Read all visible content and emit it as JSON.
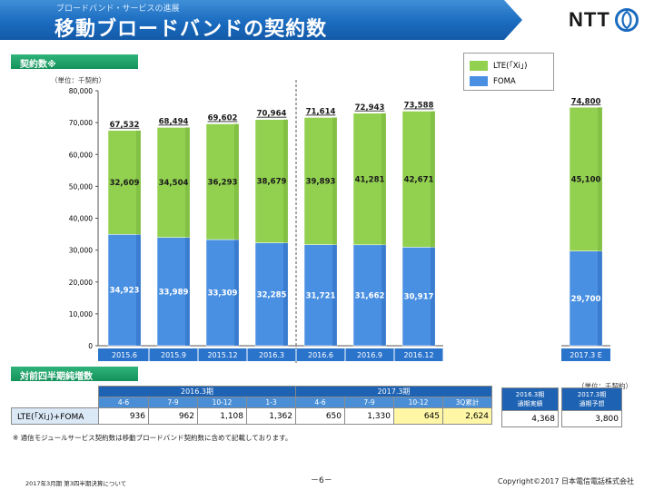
{
  "header": {
    "subtitle": "ブロードバンド・サービスの進展",
    "title": "移動ブロードバンドの契約数",
    "logo_text": "NTT"
  },
  "section1": {
    "label": "契約数※",
    "unit": "（単位：千契約）"
  },
  "section2": {
    "label": "対前四半期純増数",
    "unit": "（単位：千契約）"
  },
  "legend": {
    "lte": "LTE(「Xi」)",
    "foma": "FOMA"
  },
  "colors": {
    "lte": "#92d050",
    "foma": "#4a90e2",
    "foma_dark": "#2f6fc4",
    "axis_label_bg": "#2b74cc"
  },
  "chart_data": {
    "type": "bar",
    "stacked": true,
    "categories": [
      "2015.6",
      "2015.9",
      "2015.12",
      "2016.3",
      "2016.6",
      "2016.9",
      "2016.12",
      "2017.3 E"
    ],
    "series": [
      {
        "name": "FOMA",
        "values": [
          34923,
          33989,
          33309,
          32285,
          31721,
          31662,
          30917,
          29700
        ]
      },
      {
        "name": "LTE(「Xi」)",
        "values": [
          32609,
          34504,
          36293,
          38679,
          39893,
          41281,
          42671,
          45100
        ]
      }
    ],
    "totals": [
      67532,
      68494,
      69602,
      70964,
      71614,
      72943,
      73588,
      74800
    ],
    "ylim": [
      0,
      80000
    ],
    "yticks": [
      0,
      10000,
      20000,
      30000,
      40000,
      50000,
      60000,
      70000,
      80000
    ],
    "ytick_labels": [
      "0",
      "10,000",
      "20,000",
      "30,000",
      "40,000",
      "50,000",
      "60,000",
      "70,000",
      "80,000"
    ],
    "foma_labels": [
      "34,923",
      "33,989",
      "33,309",
      "32,285",
      "31,721",
      "31,662",
      "30,917",
      "29,700"
    ],
    "lte_labels": [
      "32,609",
      "34,504",
      "36,293",
      "38,679",
      "39,893",
      "41,281",
      "42,671",
      "45,100"
    ],
    "total_labels": [
      "67,532",
      "68,494",
      "69,602",
      "70,964",
      "71,614",
      "72,943",
      "73,588",
      "74,800"
    ]
  },
  "table": {
    "period_a": "2016.3期",
    "period_b": "2017.3期",
    "quarters_a": [
      "4-6",
      "7-9",
      "10-12",
      "1-3"
    ],
    "quarters_b": [
      "4-6",
      "7-9",
      "10-12",
      "3Q累計"
    ],
    "row_label": "LTE(「Xi」)+FOMA",
    "values_a": [
      "936",
      "962",
      "1,108",
      "1,362"
    ],
    "values_b": [
      "650",
      "1,330",
      "645",
      "2,624"
    ],
    "actual_header_1": "2016.3期",
    "actual_header_2": "通期実績",
    "actual_value": "4,368",
    "forecast_header_1": "2017.3期",
    "forecast_header_2": "通期予想",
    "forecast_value": "3,800"
  },
  "note": "※ 通信モジュールサービス契約数は移動ブロードバンド契約数に含めて記載しております。",
  "footer": {
    "left": "2017年3月期 第3四半期決算について",
    "center": "－6－",
    "right": "Copyright©2017 日本電信電話株式会社"
  }
}
